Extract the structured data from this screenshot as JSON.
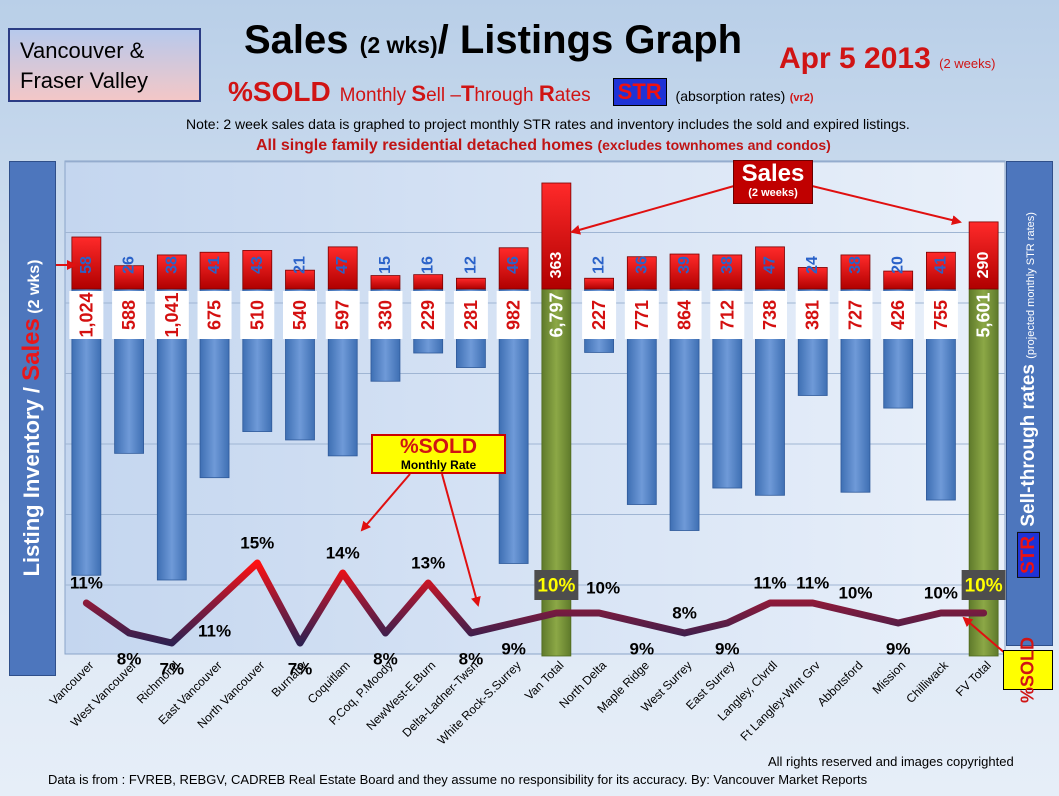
{
  "header": {
    "region_line1": "Vancouver &",
    "region_line2": "Fraser Valley",
    "title_a": "Sales ",
    "title_b": "(2 wks)",
    "title_c": "/ Listings Graph",
    "date": "Apr 5 2013",
    "date_sub": "(2 weeks)",
    "sub_pct": "%SOLD",
    "sub_m1": "Monthly ",
    "sub_s": "S",
    "sub_m2": "ell –",
    "sub_t": "T",
    "sub_m3": "hrough ",
    "sub_r": "R",
    "sub_m4": "ates",
    "sub_str": "STR",
    "sub_abs": "(absorption rates)",
    "sub_vr": "(vr2)",
    "note": "Note: 2 week sales data is graphed to project monthly STR rates and inventory includes the sold and expired listings.",
    "note2_a": "All single family residential detached homes ",
    "note2_b": "(excludes townhomes and condos)"
  },
  "left_label": {
    "a": "Listing Inventory ",
    "b": "/ ",
    "c": "Sales",
    "d": " (2 wks)"
  },
  "right_label": {
    "str": "STR",
    "a": " Sell-through rates ",
    "b": "(projected monthly STR rates)"
  },
  "sold_vert": "%SOLD",
  "callouts": {
    "sales_big": "Sales",
    "sales_small": "(2 weeks)",
    "sold_big": "%SOLD",
    "sold_small": "Monthly Rate"
  },
  "footer": {
    "copyright": "All rights reserved and  images copyrighted",
    "source": "Data is  from : FVREB, REBGV, CADREB Real Estate Board and they assume no responsibility  for its accuracy. By: Vancouver Market Reports"
  },
  "colors": {
    "inventory_bar": "#4f81c6",
    "total_bar": "#77923b",
    "sales_bar": "#e01010",
    "line_low": "#3a1a4a",
    "line_high": "#ff1010"
  },
  "chart_data": {
    "type": "bar",
    "categories": [
      "Vancouver",
      "West Vancouver",
      "Richmond",
      "East Vancouver",
      "North Vancouver",
      "Burnaby",
      "Coquitlam",
      "P.Coq, P.Moody",
      "NewWest-E.Burn",
      "Delta-Ladner-Twsn",
      "White Rock-S.Surrey",
      "Van Total",
      "North Delta",
      "Maple Ridge",
      "West Surrey",
      "East Surrey",
      "Langley, Clvrdl",
      "Ft Langley-Wlnt Grv",
      "Abbotsford",
      "Mission",
      "Chilliwack",
      "FV Total"
    ],
    "series": [
      {
        "name": "Listing Inventory",
        "labels": [
          "1,024",
          "588",
          "1,041",
          "675",
          "510",
          "540",
          "597",
          "330",
          "229",
          "281",
          "982",
          "6,797",
          "227",
          "771",
          "864",
          "712",
          "738",
          "381",
          "727",
          "426",
          "755",
          "5,601"
        ],
        "values": [
          1024,
          588,
          1041,
          675,
          510,
          540,
          597,
          330,
          229,
          281,
          982,
          6797,
          227,
          771,
          864,
          712,
          738,
          381,
          727,
          426,
          755,
          5601
        ]
      },
      {
        "name": "Sales",
        "values": [
          58,
          26,
          38,
          41,
          43,
          21,
          47,
          15,
          16,
          12,
          46,
          363,
          12,
          36,
          39,
          38,
          47,
          24,
          38,
          20,
          41,
          290
        ]
      },
      {
        "name": "%SOLD",
        "labels": [
          "11%",
          "8%",
          "7%",
          "11%",
          "15%",
          "7%",
          "14%",
          "8%",
          "13%",
          "8%",
          "9%",
          "10%",
          "10%",
          "9%",
          "8%",
          "9%",
          "11%",
          "11%",
          "10%",
          "9%",
          "10%",
          "10%"
        ],
        "values": [
          11,
          8,
          7,
          11,
          15,
          7,
          14,
          8,
          13,
          8,
          9,
          10,
          10,
          9,
          8,
          9,
          11,
          11,
          10,
          9,
          10,
          10
        ]
      }
    ]
  }
}
